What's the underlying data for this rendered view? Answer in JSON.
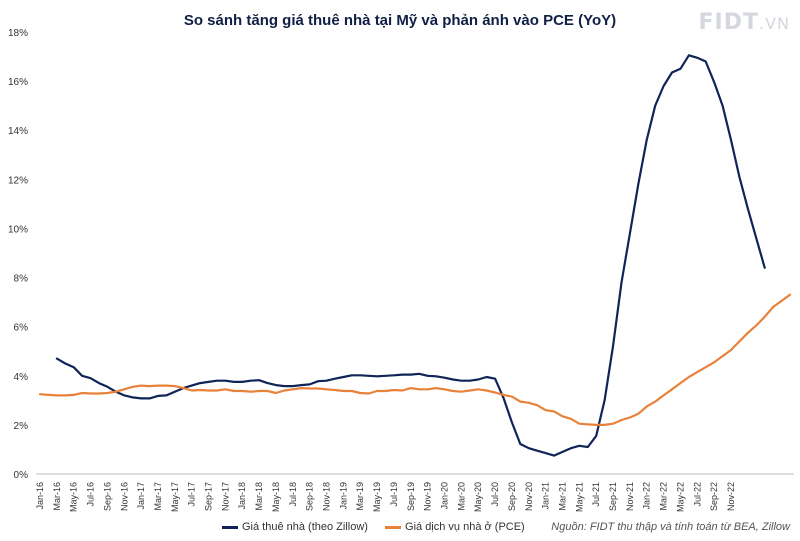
{
  "logo": {
    "text": "FIDT",
    "suffix": ".VN"
  },
  "source": "Nguồn: FIDT thu thập và tính toán từ BEA, Zillow",
  "chart_data": {
    "type": "line",
    "title": "So sánh tăng giá thuê nhà tại Mỹ và phản ánh vào PCE (YoY)",
    "xlabel": "",
    "ylabel": "",
    "ylim": [
      0,
      18
    ],
    "yticks": [
      "0%",
      "2%",
      "4%",
      "6%",
      "8%",
      "10%",
      "12%",
      "14%",
      "16%",
      "18%"
    ],
    "ytick_values": [
      0,
      2,
      4,
      6,
      8,
      10,
      12,
      14,
      16,
      18
    ],
    "grid": false,
    "legend_position": "bottom",
    "x_tick_labels": [
      "Jan-16",
      "Mar-16",
      "May-16",
      "Jul-16",
      "Sep-16",
      "Nov-16",
      "Jan-17",
      "Mar-17",
      "May-17",
      "Jul-17",
      "Sep-17",
      "Nov-17",
      "Jan-18",
      "Mar-18",
      "May-18",
      "Jul-18",
      "Sep-18",
      "Nov-18",
      "Jan-19",
      "Mar-19",
      "May-19",
      "Jul-19",
      "Sep-19",
      "Nov-19",
      "Jan-20",
      "Mar-20",
      "May-20",
      "Jul-20",
      "Sep-20",
      "Nov-20",
      "Jan-21",
      "Mar-21",
      "May-21",
      "Jul-21",
      "Sep-21",
      "Nov-21",
      "Jan-22",
      "Mar-22",
      "May-22",
      "Jul-22",
      "Sep-22",
      "Nov-22"
    ],
    "series": [
      {
        "name": "Giá thuê nhà (theo Zillow)",
        "color": "#0f2557",
        "start_index": 2,
        "values": [
          4.7,
          4.5,
          4.35,
          4.0,
          3.9,
          3.7,
          3.55,
          3.35,
          3.2,
          3.12,
          3.08,
          3.08,
          3.18,
          3.2,
          3.35,
          3.5,
          3.6,
          3.7,
          3.75,
          3.8,
          3.8,
          3.75,
          3.75,
          3.8,
          3.82,
          3.7,
          3.62,
          3.58,
          3.58,
          3.62,
          3.65,
          3.78,
          3.8,
          3.88,
          3.95,
          4.02,
          4.02,
          4.0,
          3.98,
          4.0,
          4.02,
          4.05,
          4.05,
          4.08,
          4.0,
          3.98,
          3.92,
          3.85,
          3.8,
          3.8,
          3.85,
          3.95,
          3.88,
          3.1,
          2.1,
          1.22,
          1.05,
          0.95,
          0.85,
          0.75,
          0.9,
          1.05,
          1.15,
          1.1,
          1.55,
          3.0,
          5.2,
          7.8,
          9.8,
          11.8,
          13.6,
          15.0,
          15.8,
          16.35,
          16.5,
          17.05,
          16.95,
          16.8,
          15.95,
          15.0,
          13.6,
          12.1,
          10.8,
          9.6,
          8.4
        ]
      },
      {
        "name": "Giá dịch vụ nhà ở (PCE)",
        "color": "#e8823a",
        "start_index": 0,
        "values": [
          3.25,
          3.22,
          3.2,
          3.2,
          3.22,
          3.3,
          3.28,
          3.28,
          3.3,
          3.35,
          3.45,
          3.55,
          3.6,
          3.58,
          3.6,
          3.6,
          3.58,
          3.5,
          3.4,
          3.42,
          3.4,
          3.4,
          3.45,
          3.38,
          3.38,
          3.35,
          3.38,
          3.38,
          3.3,
          3.4,
          3.45,
          3.5,
          3.48,
          3.48,
          3.45,
          3.42,
          3.38,
          3.38,
          3.3,
          3.28,
          3.38,
          3.38,
          3.42,
          3.4,
          3.5,
          3.45,
          3.45,
          3.5,
          3.45,
          3.38,
          3.35,
          3.4,
          3.45,
          3.4,
          3.32,
          3.22,
          3.15,
          2.95,
          2.9,
          2.8,
          2.6,
          2.55,
          2.35,
          2.25,
          2.05,
          2.02,
          2.0,
          2.0,
          2.05,
          2.2,
          2.3,
          2.45,
          2.75,
          2.95,
          3.2,
          3.45,
          3.7,
          3.95,
          4.15,
          4.35,
          4.55,
          4.8,
          5.05,
          5.4,
          5.75,
          6.05,
          6.4,
          6.8,
          7.05,
          7.3
        ]
      }
    ]
  }
}
